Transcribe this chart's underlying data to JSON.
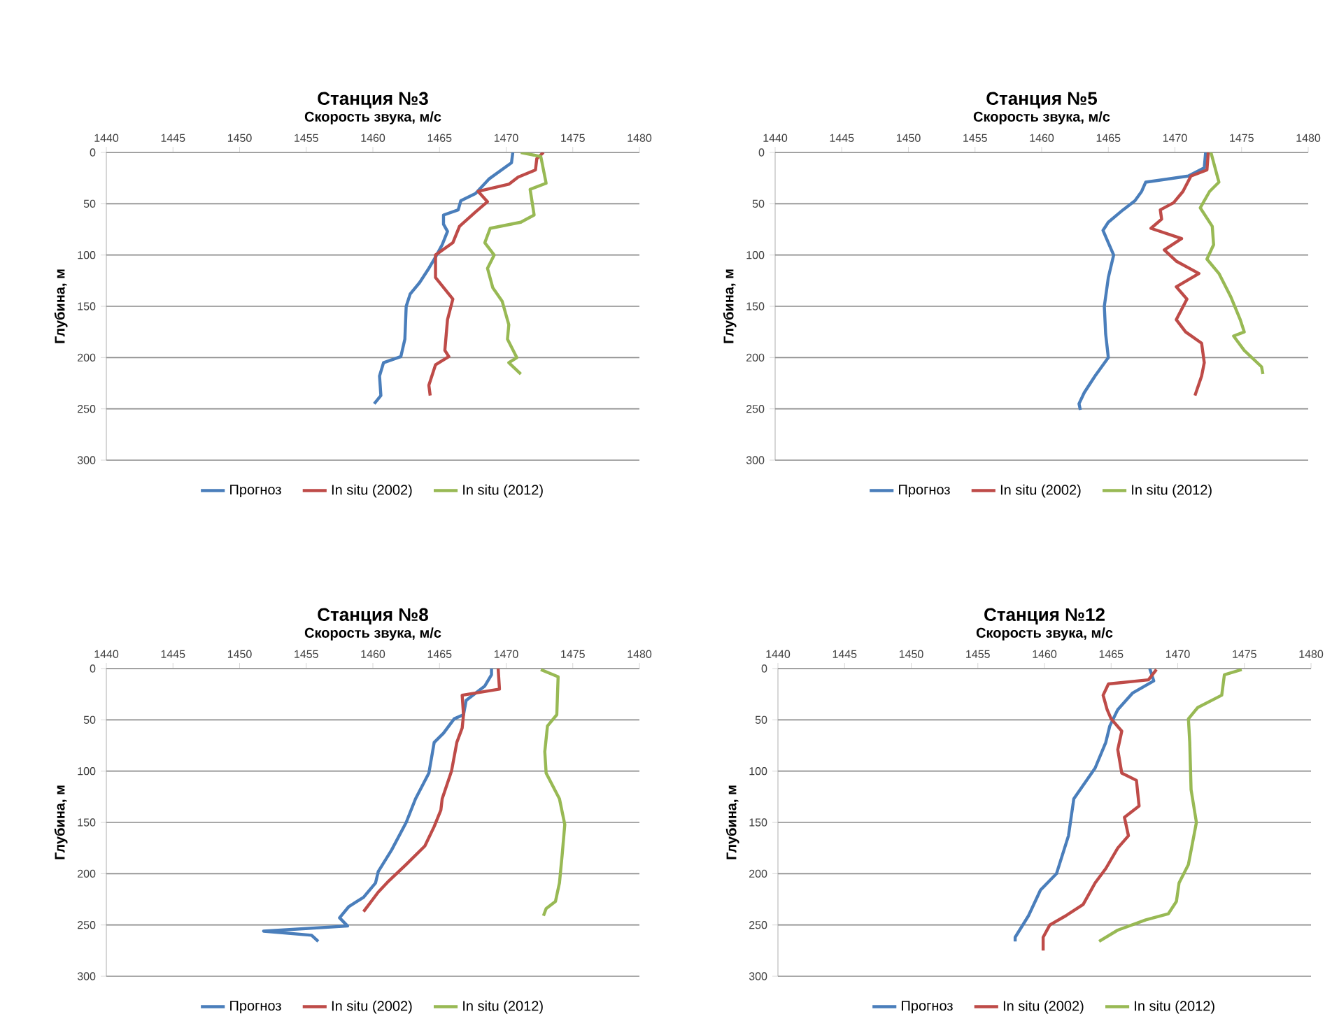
{
  "chart_data": [
    {
      "type": "line",
      "title": "Станция №3",
      "xlabel": "Скорость звука, м/с",
      "ylabel": "Глубина, м",
      "xlim": [
        1440,
        1480
      ],
      "xticks": [
        1440,
        1445,
        1450,
        1455,
        1460,
        1465,
        1470,
        1475,
        1480
      ],
      "ylim": [
        300,
        0
      ],
      "yticks": [
        0,
        50,
        100,
        150,
        200,
        250,
        300
      ],
      "grid": "y",
      "legend": "bottom",
      "series": [
        {
          "name": "Прогноз",
          "color": "#4a7ebb",
          "x": [
            1470.5,
            1470.4,
            1468.7,
            1467.7,
            1466.6,
            1466.4,
            1465.3,
            1465.3,
            1465.6,
            1465.2,
            1464.7,
            1464.2,
            1463.5,
            1462.8,
            1462.5,
            1462.4,
            1462.1,
            1460.8,
            1460.5,
            1460.6,
            1460.1
          ],
          "values": [
            0,
            10,
            26,
            40,
            47,
            56,
            61,
            70,
            77,
            90,
            102,
            113,
            127,
            138,
            150,
            182,
            199,
            205,
            218,
            237,
            245
          ]
        },
        {
          "name": "In situ (2002)",
          "color": "#be4b48",
          "x": [
            1472.8,
            1472.3,
            1472.2,
            1470.9,
            1470.2,
            1467.9,
            1468.6,
            1467.7,
            1466.5,
            1466.0,
            1464.7,
            1464.7,
            1466.0,
            1465.6,
            1465.4,
            1465.7,
            1464.7,
            1464.2,
            1464.3
          ],
          "values": [
            0,
            6,
            17,
            24,
            31,
            38,
            48,
            58,
            72,
            88,
            100,
            122,
            143,
            163,
            193,
            199,
            207,
            227,
            237
          ]
        },
        {
          "name": "In situ (2012)",
          "color": "#98b954",
          "x": [
            1471.1,
            1472.6,
            1473.0,
            1471.8,
            1472.1,
            1471.1,
            1468.8,
            1468.4,
            1469.1,
            1468.6,
            1469.0,
            1469.7,
            1470.2,
            1470.1,
            1470.8,
            1470.2,
            1471.1
          ],
          "values": [
            0,
            4,
            30,
            36,
            61,
            68,
            74,
            88,
            100,
            113,
            132,
            145,
            168,
            182,
            200,
            205,
            216
          ]
        }
      ]
    },
    {
      "type": "line",
      "title": "Станция №5",
      "xlabel": "Скорость звука, м/с",
      "ylabel": "Глубина, м",
      "xlim": [
        1440,
        1480
      ],
      "xticks": [
        1440,
        1445,
        1450,
        1455,
        1460,
        1465,
        1470,
        1475,
        1480
      ],
      "ylim": [
        300,
        0
      ],
      "yticks": [
        0,
        50,
        100,
        150,
        200,
        250,
        300
      ],
      "grid": "y",
      "legend": "bottom",
      "series": [
        {
          "name": "Прогноз",
          "color": "#4a7ebb",
          "x": [
            1472.3,
            1472.2,
            1471.0,
            1467.8,
            1467.5,
            1467.0,
            1466.1,
            1465.0,
            1464.6,
            1465.0,
            1465.4,
            1465.0,
            1464.7,
            1464.8,
            1465.0,
            1464.0,
            1463.2,
            1462.8,
            1462.9
          ],
          "values": [
            0,
            15,
            23,
            29,
            38,
            47,
            56,
            68,
            76,
            88,
            100,
            122,
            150,
            177,
            200,
            218,
            234,
            245,
            251
          ]
        },
        {
          "name": "In situ (2002)",
          "color": "#be4b48",
          "x": [
            1472.5,
            1472.4,
            1471.2,
            1470.6,
            1469.9,
            1468.9,
            1469.0,
            1468.2,
            1470.5,
            1469.2,
            1470.1,
            1471.8,
            1470.1,
            1470.9,
            1470.1,
            1470.8,
            1472.0,
            1472.2,
            1472.0,
            1471.5
          ],
          "values": [
            0,
            17,
            23,
            38,
            49,
            56,
            65,
            74,
            84,
            95,
            106,
            118,
            131,
            143,
            163,
            175,
            186,
            205,
            218,
            237
          ]
        },
        {
          "name": "In situ (2012)",
          "color": "#98b954",
          "x": [
            1472.7,
            1473.3,
            1472.6,
            1471.9,
            1472.8,
            1472.9,
            1472.4,
            1473.3,
            1474.2,
            1474.9,
            1475.2,
            1474.4,
            1475.2,
            1476.5,
            1476.6
          ],
          "values": [
            0,
            29,
            38,
            54,
            72,
            90,
            104,
            118,
            141,
            163,
            175,
            179,
            193,
            209,
            216
          ]
        }
      ]
    },
    {
      "type": "line",
      "title": "Станция №8",
      "xlabel": "Скорость звука, м/с",
      "ylabel": "Глубина, м",
      "xlim": [
        1440,
        1480
      ],
      "xticks": [
        1440,
        1445,
        1450,
        1455,
        1460,
        1465,
        1470,
        1475,
        1480
      ],
      "ylim": [
        300,
        0
      ],
      "yticks": [
        0,
        50,
        100,
        150,
        200,
        250,
        300
      ],
      "grid": "y",
      "legend": "bottom",
      "series": [
        {
          "name": "Прогноз",
          "color": "#4a7ebb",
          "x": [
            1468.9,
            1468.9,
            1468.4,
            1467.0,
            1466.8,
            1466.1,
            1465.3,
            1464.6,
            1464.2,
            1463.2,
            1462.5,
            1461.4,
            1460.4,
            1460.2,
            1459.3,
            1458.2,
            1457.5,
            1458.1,
            1451.8,
            1455.4,
            1455.9
          ],
          "values": [
            0,
            6,
            17,
            31,
            45,
            49,
            63,
            72,
            102,
            127,
            150,
            177,
            198,
            209,
            223,
            232,
            243,
            251,
            256,
            260,
            266
          ]
        },
        {
          "name": "In situ (2002)",
          "color": "#be4b48",
          "x": [
            1469.4,
            1469.5,
            1466.7,
            1466.8,
            1466.7,
            1466.3,
            1465.9,
            1465.2,
            1465.1,
            1464.6,
            1463.9,
            1462.5,
            1461.2,
            1460.4,
            1459.3
          ],
          "values": [
            0,
            20,
            26,
            45,
            58,
            72,
            100,
            127,
            138,
            154,
            173,
            191,
            207,
            218,
            237
          ]
        },
        {
          "name": "In situ (2012)",
          "color": "#98b954",
          "x": [
            1472.6,
            1473.9,
            1473.8,
            1473.1,
            1472.9,
            1473.0,
            1474.0,
            1474.4,
            1474.2,
            1474.0,
            1473.7,
            1473.0,
            1472.8
          ],
          "values": [
            1,
            8,
            45,
            56,
            81,
            102,
            127,
            152,
            182,
            209,
            227,
            234,
            241
          ]
        }
      ]
    },
    {
      "type": "line",
      "title": "Станция №12",
      "xlabel": "Скорость звука, м/с",
      "ylabel": "Глубина, м",
      "xlim": [
        1440,
        1480
      ],
      "xticks": [
        1440,
        1445,
        1450,
        1455,
        1460,
        1465,
        1470,
        1475,
        1480
      ],
      "ylim": [
        300,
        0
      ],
      "yticks": [
        0,
        50,
        100,
        150,
        200,
        250,
        300
      ],
      "grid": "y",
      "legend": "bottom",
      "series": [
        {
          "name": "Прогноз",
          "color": "#4a7ebb",
          "x": [
            1467.9,
            1468.2,
            1466.6,
            1465.5,
            1464.9,
            1464.6,
            1463.8,
            1462.2,
            1461.8,
            1460.9,
            1459.7,
            1458.8,
            1457.8,
            1457.8
          ],
          "values": [
            0,
            12,
            24,
            40,
            56,
            72,
            97,
            127,
            163,
            200,
            216,
            241,
            262,
            266
          ]
        },
        {
          "name": "In situ (2002)",
          "color": "#be4b48",
          "x": [
            1468.4,
            1467.8,
            1464.8,
            1464.4,
            1464.7,
            1465.0,
            1465.8,
            1465.5,
            1465.8,
            1466.9,
            1467.1,
            1466.0,
            1466.3,
            1465.5,
            1464.6,
            1463.8,
            1462.9,
            1461.6,
            1460.4,
            1459.9,
            1459.9
          ],
          "values": [
            1,
            11,
            15,
            26,
            40,
            49,
            61,
            79,
            102,
            109,
            134,
            145,
            163,
            175,
            195,
            209,
            230,
            241,
            250,
            262,
            275
          ]
        },
        {
          "name": "In situ (2012)",
          "color": "#98b954",
          "x": [
            1474.8,
            1473.5,
            1473.3,
            1471.5,
            1470.8,
            1470.9,
            1471.0,
            1471.4,
            1470.8,
            1470.1,
            1469.9,
            1469.3,
            1467.6,
            1465.5,
            1464.1
          ],
          "values": [
            1,
            6,
            26,
            38,
            49,
            72,
            118,
            150,
            191,
            209,
            227,
            239,
            245,
            255,
            266
          ]
        }
      ]
    }
  ]
}
